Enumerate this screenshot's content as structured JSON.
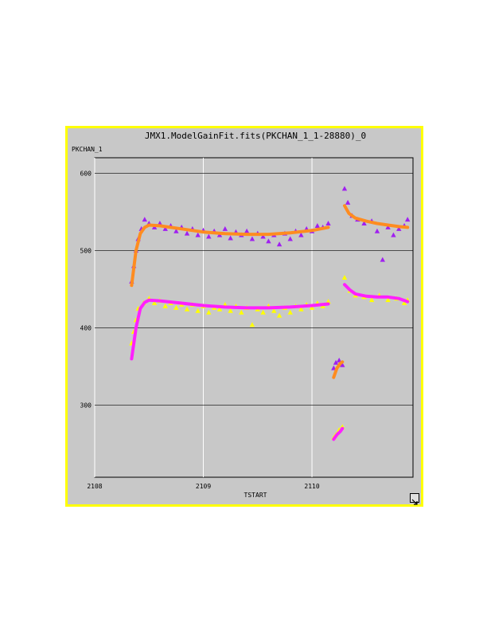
{
  "window": {
    "title": "JMX1.ModelGainFit.fits(PKCHAN_1_1-28880)_0",
    "border_color": "#ffff00",
    "background_color": "#c8c8c8"
  },
  "chart_data": {
    "type": "scatter",
    "title": "JMX1.ModelGainFit.fits(PKCHAN_1_1-28880)_0",
    "xlabel": "TSTART",
    "ylabel": "PKCHAN_1",
    "xlim": [
      2108,
      2110.93
    ],
    "ylim": [
      207,
      620
    ],
    "x_ticks": [
      2108,
      2109,
      2110
    ],
    "y_ticks": [
      300,
      400,
      500,
      600
    ],
    "grid": true,
    "series": [
      {
        "marker": "triangle",
        "color": "#a020f0",
        "points": [
          [
            2108.34,
            460
          ],
          [
            2108.36,
            480
          ],
          [
            2108.38,
            500
          ],
          [
            2108.4,
            515
          ],
          [
            2108.43,
            528
          ],
          [
            2108.46,
            540
          ],
          [
            2108.5,
            535
          ],
          [
            2108.55,
            530
          ],
          [
            2108.6,
            535
          ],
          [
            2108.65,
            528
          ],
          [
            2108.7,
            532
          ],
          [
            2108.75,
            525
          ],
          [
            2108.8,
            530
          ],
          [
            2108.85,
            522
          ],
          [
            2108.9,
            528
          ],
          [
            2108.95,
            520
          ],
          [
            2109.0,
            526
          ],
          [
            2109.05,
            518
          ],
          [
            2109.1,
            525
          ],
          [
            2109.15,
            520
          ],
          [
            2109.2,
            528
          ],
          [
            2109.25,
            516
          ],
          [
            2109.3,
            524
          ],
          [
            2109.35,
            520
          ],
          [
            2109.4,
            525
          ],
          [
            2109.45,
            515
          ],
          [
            2109.5,
            522
          ],
          [
            2109.55,
            518
          ],
          [
            2109.6,
            512
          ],
          [
            2109.65,
            520
          ],
          [
            2109.7,
            508
          ],
          [
            2109.75,
            522
          ],
          [
            2109.8,
            515
          ],
          [
            2109.85,
            525
          ],
          [
            2109.9,
            520
          ],
          [
            2109.95,
            528
          ],
          [
            2110.0,
            525
          ],
          [
            2110.05,
            532
          ],
          [
            2110.1,
            530
          ],
          [
            2110.15,
            535
          ],
          [
            2110.2,
            348
          ],
          [
            2110.22,
            355
          ],
          [
            2110.25,
            358
          ],
          [
            2110.28,
            352
          ],
          [
            2110.3,
            580
          ],
          [
            2110.33,
            562
          ],
          [
            2110.37,
            545
          ],
          [
            2110.42,
            540
          ],
          [
            2110.48,
            535
          ],
          [
            2110.55,
            538
          ],
          [
            2110.6,
            525
          ],
          [
            2110.65,
            488
          ],
          [
            2110.7,
            530
          ],
          [
            2110.75,
            520
          ],
          [
            2110.8,
            528
          ],
          [
            2110.85,
            532
          ],
          [
            2110.88,
            540
          ]
        ]
      },
      {
        "marker": "triangle",
        "color": "#ffff00",
        "points": [
          [
            2108.34,
            380
          ],
          [
            2108.36,
            395
          ],
          [
            2108.38,
            410
          ],
          [
            2108.4,
            425
          ],
          [
            2108.45,
            432
          ],
          [
            2108.5,
            438
          ],
          [
            2108.55,
            432
          ],
          [
            2108.6,
            435
          ],
          [
            2108.65,
            428
          ],
          [
            2108.7,
            432
          ],
          [
            2108.75,
            426
          ],
          [
            2108.8,
            430
          ],
          [
            2108.85,
            424
          ],
          [
            2108.9,
            430
          ],
          [
            2108.95,
            422
          ],
          [
            2109.0,
            428
          ],
          [
            2109.05,
            420
          ],
          [
            2109.1,
            426
          ],
          [
            2109.15,
            424
          ],
          [
            2109.2,
            430
          ],
          [
            2109.25,
            422
          ],
          [
            2109.3,
            428
          ],
          [
            2109.35,
            420
          ],
          [
            2109.4,
            426
          ],
          [
            2109.45,
            404
          ],
          [
            2109.5,
            424
          ],
          [
            2109.55,
            420
          ],
          [
            2109.6,
            428
          ],
          [
            2109.65,
            422
          ],
          [
            2109.7,
            416
          ],
          [
            2109.75,
            426
          ],
          [
            2109.8,
            420
          ],
          [
            2109.85,
            428
          ],
          [
            2109.9,
            424
          ],
          [
            2109.95,
            430
          ],
          [
            2110.0,
            426
          ],
          [
            2110.05,
            432
          ],
          [
            2110.1,
            428
          ],
          [
            2110.15,
            434
          ],
          [
            2110.2,
            258
          ],
          [
            2110.22,
            262
          ],
          [
            2110.25,
            268
          ],
          [
            2110.28,
            272
          ],
          [
            2110.3,
            465
          ],
          [
            2110.35,
            448
          ],
          [
            2110.4,
            442
          ],
          [
            2110.48,
            440
          ],
          [
            2110.55,
            436
          ],
          [
            2110.62,
            442
          ],
          [
            2110.7,
            436
          ],
          [
            2110.78,
            438
          ],
          [
            2110.85,
            432
          ],
          [
            2110.88,
            436
          ]
        ]
      },
      {
        "marker": "line",
        "color": "#ff8c20",
        "points": [
          [
            2108.34,
            455
          ],
          [
            2108.38,
            500
          ],
          [
            2108.42,
            522
          ],
          [
            2108.46,
            530
          ],
          [
            2108.5,
            533
          ],
          [
            2108.6,
            532
          ],
          [
            2108.8,
            528
          ],
          [
            2109.0,
            524
          ],
          [
            2109.2,
            522
          ],
          [
            2109.4,
            521
          ],
          [
            2109.6,
            521
          ],
          [
            2109.8,
            523
          ],
          [
            2110.0,
            526
          ],
          [
            2110.15,
            530
          ],
          [
            2110.2,
            336
          ],
          [
            2110.23,
            348
          ],
          [
            2110.26,
            354
          ],
          [
            2110.28,
            356
          ],
          [
            2110.3,
            558
          ],
          [
            2110.34,
            548
          ],
          [
            2110.4,
            542
          ],
          [
            2110.5,
            538
          ],
          [
            2110.6,
            535
          ],
          [
            2110.7,
            533
          ],
          [
            2110.8,
            531
          ],
          [
            2110.88,
            530
          ]
        ]
      },
      {
        "marker": "line",
        "color": "#ff20ff",
        "points": [
          [
            2108.34,
            360
          ],
          [
            2108.38,
            400
          ],
          [
            2108.42,
            425
          ],
          [
            2108.46,
            433
          ],
          [
            2108.5,
            436
          ],
          [
            2108.6,
            435
          ],
          [
            2108.8,
            432
          ],
          [
            2109.0,
            429
          ],
          [
            2109.2,
            427
          ],
          [
            2109.4,
            426
          ],
          [
            2109.6,
            426
          ],
          [
            2109.8,
            427
          ],
          [
            2110.0,
            429
          ],
          [
            2110.15,
            431
          ],
          [
            2110.2,
            256
          ],
          [
            2110.23,
            262
          ],
          [
            2110.26,
            266
          ],
          [
            2110.28,
            270
          ],
          [
            2110.3,
            456
          ],
          [
            2110.35,
            449
          ],
          [
            2110.4,
            444
          ],
          [
            2110.5,
            441
          ],
          [
            2110.6,
            440
          ],
          [
            2110.7,
            440
          ],
          [
            2110.8,
            438
          ],
          [
            2110.88,
            434
          ]
        ]
      }
    ]
  }
}
